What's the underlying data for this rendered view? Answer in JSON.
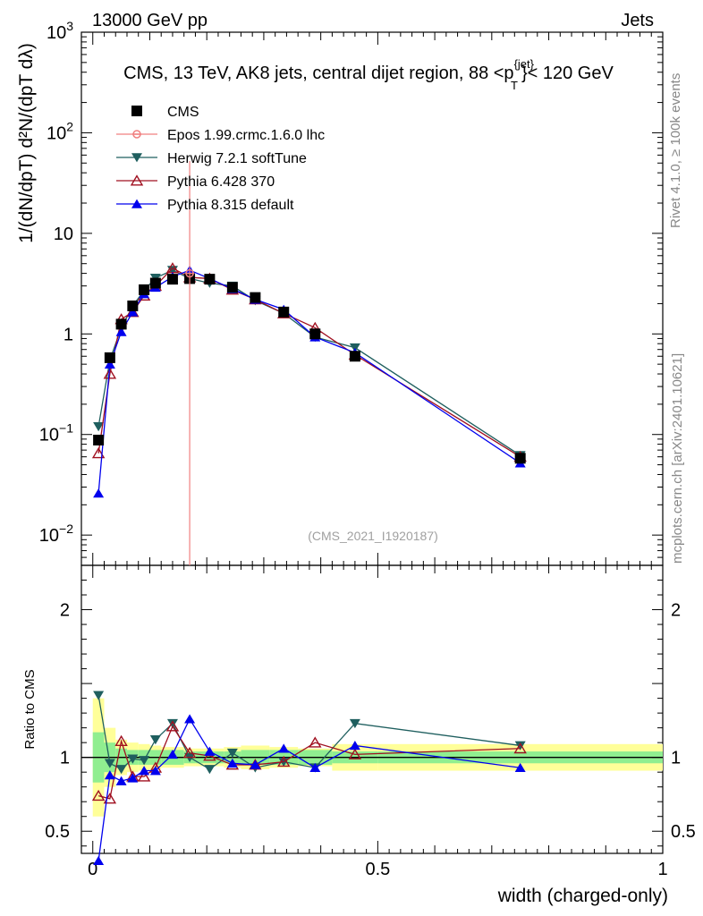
{
  "header": {
    "energy_label": "13000 GeV pp",
    "category_label": "Jets",
    "title": "CMS, 13 TeV, AK8 jets, central dijet region, 88 <p",
    "title_sup": "{jet}",
    "title_sub": "T",
    "title_end": "}< 120 GeV",
    "side_label_top": "Rivet 4.1.0, ≥ 100k events",
    "side_label_bottom": "mcplots.cern.ch [arXiv:2401.10621]",
    "analysis_tag": "(CMS_2021_I1920187)"
  },
  "chart_data": [
    {
      "type": "line",
      "panel": "main",
      "ylabel": "1/(dN/dpT) d²N/(dpT dλ)",
      "yscale": "log",
      "ylim": [
        0.005,
        1000
      ],
      "xlim": [
        -0.02,
        1.0
      ],
      "y_ticks": [
        {
          "v": 0.01,
          "base": "10",
          "exp": "−2"
        },
        {
          "v": 0.1,
          "base": "10",
          "exp": "−1"
        },
        {
          "v": 1,
          "base": "1",
          "exp": ""
        },
        {
          "v": 10,
          "base": "10",
          "exp": ""
        },
        {
          "v": 100,
          "base": "10",
          "exp": "2"
        },
        {
          "v": 1000,
          "base": "10",
          "exp": "3"
        }
      ],
      "legend": [
        {
          "name": "CMS",
          "color": "#000000",
          "marker": "square"
        },
        {
          "name": "Epos 1.99.crmc.1.6.0 lhc",
          "color": "#f08080",
          "marker": "cross"
        },
        {
          "name": "Herwig 7.2.1 softTune",
          "color": "#1f5f5f",
          "marker": "tri-down"
        },
        {
          "name": "Pythia 6.428 370",
          "color": "#a01020",
          "marker": "tri-up-open"
        },
        {
          "name": "Pythia 8.315 default",
          "color": "#0000ee",
          "marker": "tri-up"
        }
      ],
      "x": [
        0.01,
        0.03,
        0.05,
        0.07,
        0.09,
        0.11,
        0.14,
        0.17,
        0.205,
        0.245,
        0.285,
        0.335,
        0.39,
        0.46,
        0.75
      ],
      "series": [
        {
          "name": "CMS",
          "values": [
            0.088,
            0.58,
            1.25,
            1.9,
            2.75,
            3.2,
            3.5,
            3.55,
            3.5,
            2.9,
            2.3,
            1.65,
            1.0,
            0.6,
            0.058
          ]
        },
        {
          "name": "Epos 1.99.crmc.1.6.0 lhc",
          "values": [
            null,
            null,
            null,
            null,
            null,
            null,
            null,
            4.0,
            null,
            null,
            null,
            null,
            null,
            null,
            null
          ]
        },
        {
          "name": "Herwig 7.2.1 softTune",
          "values": [
            0.12,
            0.55,
            1.15,
            1.9,
            2.7,
            3.6,
            4.3,
            3.55,
            3.2,
            3.0,
            2.15,
            1.6,
            0.93,
            0.73,
            0.062
          ]
        },
        {
          "name": "Pythia 6.428 370",
          "values": [
            0.065,
            0.4,
            1.4,
            1.65,
            2.4,
            3.0,
            4.5,
            3.65,
            3.55,
            2.75,
            2.2,
            1.6,
            1.15,
            0.62,
            0.06
          ]
        },
        {
          "name": "Pythia 8.315 default",
          "values": [
            0.026,
            0.5,
            1.05,
            1.65,
            2.5,
            2.9,
            3.7,
            4.3,
            3.55,
            2.8,
            2.2,
            1.75,
            0.93,
            0.65,
            0.052
          ]
        }
      ]
    },
    {
      "type": "line",
      "panel": "ratio",
      "xlabel": "width (charged-only)",
      "ylabel": "Ratio to CMS",
      "ylim": [
        0.35,
        2.3
      ],
      "xlim": [
        -0.02,
        1.0
      ],
      "x_ticks": [
        {
          "v": 0,
          "label": "0"
        },
        {
          "v": 0.5,
          "label": "0.5"
        },
        {
          "v": 1,
          "label": "1"
        }
      ],
      "y_ticks": [
        {
          "v": 0.5,
          "label": "0.5"
        },
        {
          "v": 1,
          "label": "1"
        },
        {
          "v": 2,
          "label": "2"
        }
      ],
      "bin_edges": [
        0.0,
        0.02,
        0.04,
        0.06,
        0.08,
        0.1,
        0.12,
        0.16,
        0.18,
        0.23,
        0.26,
        0.31,
        0.36,
        0.42,
        0.5,
        1.0
      ],
      "band_inner": [
        0.17,
        0.1,
        0.06,
        0.05,
        0.05,
        0.05,
        0.05,
        0.04,
        0.04,
        0.04,
        0.05,
        0.05,
        0.05,
        0.04,
        0.04
      ],
      "band_outer": [
        0.4,
        0.2,
        0.12,
        0.1,
        0.09,
        0.08,
        0.07,
        0.06,
        0.06,
        0.07,
        0.08,
        0.07,
        0.06,
        0.09,
        0.09
      ],
      "x": [
        0.01,
        0.03,
        0.05,
        0.07,
        0.09,
        0.11,
        0.14,
        0.17,
        0.205,
        0.245,
        0.285,
        0.335,
        0.39,
        0.46,
        0.75
      ],
      "series": [
        {
          "name": "Herwig 7.2.1 softTune",
          "values": [
            1.42,
            0.96,
            0.92,
            0.99,
            0.98,
            1.12,
            1.23,
            1.0,
            0.92,
            1.03,
            0.93,
            0.97,
            0.93,
            1.23,
            1.08
          ]
        },
        {
          "name": "Pythia 6.428 370",
          "values": [
            0.74,
            0.72,
            1.11,
            0.87,
            0.87,
            0.93,
            1.21,
            1.03,
            1.01,
            0.95,
            0.95,
            0.97,
            1.1,
            1.02,
            1.06
          ]
        },
        {
          "name": "Pythia 8.315 default",
          "values": [
            0.3,
            0.88,
            0.84,
            0.86,
            0.91,
            0.91,
            1.02,
            1.26,
            1.04,
            0.96,
            0.95,
            1.06,
            0.93,
            1.08,
            0.93
          ]
        }
      ]
    }
  ]
}
